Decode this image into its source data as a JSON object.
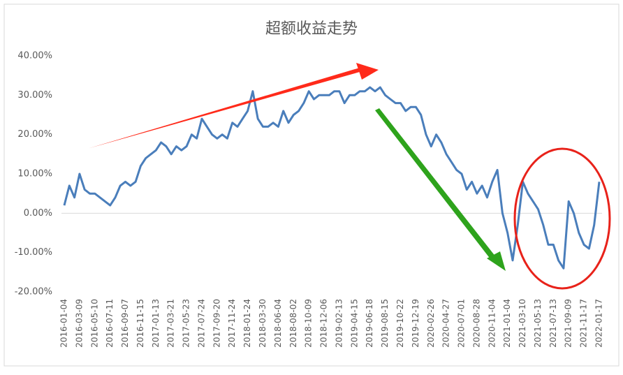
{
  "chart_data": {
    "type": "line",
    "title": "超额收益走势",
    "categories": [
      "2016-01-04",
      null,
      null,
      "2016-03-09",
      null,
      null,
      "2016-05-10",
      null,
      null,
      "2016-07-11",
      null,
      null,
      "2016-09-07",
      null,
      null,
      "2016-11-15",
      null,
      null,
      "2017-01-13",
      null,
      null,
      "2017-03-21",
      null,
      null,
      "2017-05-23",
      null,
      null,
      "2017-07-24",
      null,
      null,
      "2017-09-20",
      null,
      null,
      "2017-11-24",
      null,
      null,
      "2018-01-24",
      null,
      null,
      "2018-03-30",
      null,
      null,
      "2018-06-04",
      null,
      null,
      "2018-08-02",
      null,
      null,
      "2018-10-09",
      null,
      null,
      "2018-12-06",
      null,
      null,
      "2019-02-13",
      null,
      null,
      "2019-04-15",
      null,
      null,
      "2019-06-18",
      null,
      null,
      "2019-08-15",
      null,
      null,
      "2019-10-22",
      null,
      null,
      "2019-12-19",
      null,
      null,
      "2020-02-26",
      null,
      null,
      "2020-04-27",
      null,
      null,
      "2020-07-01",
      null,
      null,
      "2020-08-28",
      null,
      null,
      "2020-11-04",
      null,
      null,
      "2021-01-04",
      null,
      null,
      "2021-03-10",
      null,
      null,
      "2021-05-13",
      null,
      null,
      "2021-07-13",
      null,
      null,
      "2021-09-09",
      null,
      null,
      "2021-11-17",
      null,
      null,
      "2022-01-17"
    ],
    "series": [
      {
        "name": "超额收益",
        "color": "#4a7ebb",
        "values": [
          2,
          7,
          4,
          10,
          6,
          5,
          5,
          4,
          3,
          2,
          4,
          7,
          8,
          7,
          8,
          12,
          14,
          15,
          16,
          18,
          17,
          15,
          17,
          16,
          17,
          20,
          19,
          24,
          22,
          20,
          19,
          20,
          19,
          23,
          22,
          24,
          26,
          31,
          24,
          22,
          22,
          23,
          22,
          26,
          23,
          25,
          26,
          28,
          31,
          29,
          30,
          30,
          30,
          31,
          31,
          28,
          30,
          30,
          31,
          31,
          32,
          31,
          32,
          30,
          29,
          28,
          28,
          26,
          27,
          27,
          25,
          20,
          17,
          20,
          18,
          15,
          13,
          11,
          10,
          6,
          8,
          5,
          7,
          4,
          8,
          11,
          0,
          -5,
          -12,
          -3,
          8,
          5,
          3,
          1,
          -3,
          -8,
          -8,
          -12,
          -14,
          3,
          0,
          -5,
          -8,
          -9,
          -3,
          8
        ]
      }
    ],
    "ylim": [
      -20,
      40
    ],
    "yticks": [
      {
        "value": -20,
        "label": "-20.00%"
      },
      {
        "value": -10,
        "label": "-10.00%"
      },
      {
        "value": 0,
        "label": "0.00%"
      },
      {
        "value": 10,
        "label": "10.00%"
      },
      {
        "value": 20,
        "label": "20.00%"
      },
      {
        "value": 30,
        "label": "30.00%"
      },
      {
        "value": 40,
        "label": "40.00%"
      }
    ],
    "grid": false
  }
}
